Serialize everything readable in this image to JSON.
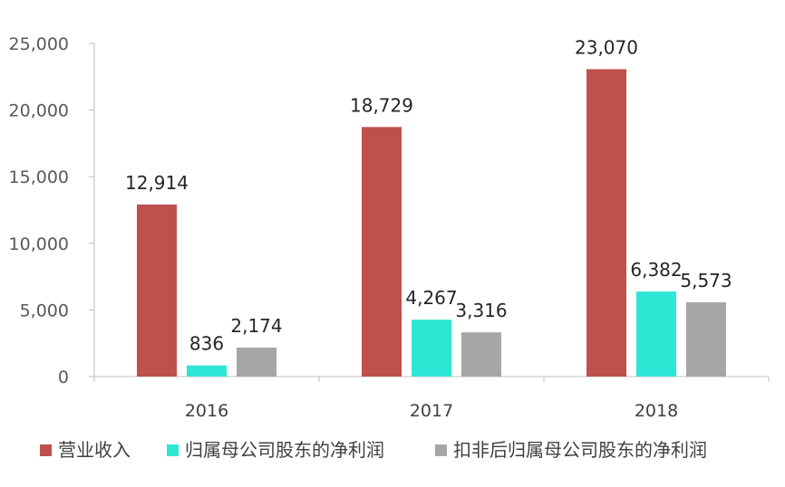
{
  "chart_data": {
    "type": "bar",
    "categories": [
      "2016",
      "2017",
      "2018"
    ],
    "series": [
      {
        "name": "营业收入",
        "color": "#c0504d",
        "values": [
          12914,
          18729,
          23070
        ],
        "labels": [
          "12,914",
          "18,729",
          "23,070"
        ]
      },
      {
        "name": "归属母公司股东的净利润",
        "color": "#2ee6d4",
        "values": [
          836,
          4267,
          6382
        ],
        "labels": [
          "836",
          "4,267",
          "6,382"
        ]
      },
      {
        "name": "扣非后归属母公司股东的净利润",
        "color": "#a6a6a6",
        "values": [
          2174,
          3316,
          5573
        ],
        "labels": [
          "2,174",
          "3,316",
          "5,573"
        ]
      }
    ],
    "y_ticks": [
      0,
      5000,
      10000,
      15000,
      20000,
      25000
    ],
    "y_tick_labels": [
      "0",
      "5,000",
      "10,000",
      "15,000",
      "20,000",
      "25,000"
    ],
    "ylim": [
      0,
      25000
    ],
    "grid": false,
    "legend_position": "bottom"
  }
}
